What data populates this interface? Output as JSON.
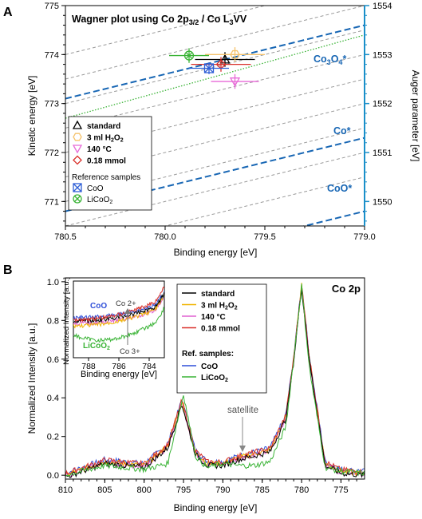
{
  "chart_data": [
    {
      "panel_label": "A",
      "type": "scatter",
      "title": "Wagner plot using Co 2p3/2 / Co L3VV",
      "title_parts": {
        "pre": "Wagner plot using Co 2p",
        "sub1": "3/2",
        "mid": " / Co L",
        "sub2": "3",
        "post": "VV"
      },
      "xlabel": "Binding energy [eV]",
      "ylabel": "Kinetic energy [eV]",
      "y2label": "Auger parameter [eV]",
      "xlim": [
        780.5,
        779.0
      ],
      "ylim": [
        770.5,
        775.0
      ],
      "y2lim": [
        1549.5,
        1554.0
      ],
      "xticks": [
        "780.5",
        "780.0",
        "779.5",
        "779.0"
      ],
      "yticks": [
        "771",
        "772",
        "773",
        "774",
        "775"
      ],
      "y2ticks": [
        "1550",
        "1551",
        "1552",
        "1553",
        "1554"
      ],
      "reference_lines": [
        {
          "label": "Co3O4*",
          "label_parts": {
            "pre": "Co",
            "sub1": "3",
            "mid": "O",
            "sub2": "4",
            "post": "*"
          },
          "auger_parameter": 1553.6
        },
        {
          "label": "Co*",
          "auger_parameter": 1551.3
        },
        {
          "label": "CoO*",
          "auger_parameter": 1549.8
        },
        {
          "label": "LiCoO2 (dotted)",
          "auger_parameter": 1553.3
        }
      ],
      "legend_group1": [
        {
          "name": "standard",
          "marker": "triangle",
          "color": "#000000"
        },
        {
          "name": "3 ml H2O2",
          "parts": {
            "pre": "3 ml H",
            "sub1": "2",
            "mid": "O",
            "sub2": "2"
          },
          "marker": "hexagon",
          "color": "#f5c26b"
        },
        {
          "name": "140 °C",
          "marker": "triangle-down",
          "color": "#e86ad8"
        },
        {
          "name": "0.18 mmol",
          "marker": "diamond",
          "color": "#d9302a"
        }
      ],
      "legend_group2_title": "Reference samples",
      "legend_group2": [
        {
          "name": "CoO",
          "marker": "box-x",
          "color": "#2f5fd6"
        },
        {
          "name": "LiCoO2",
          "parts": {
            "pre": "LiCoO",
            "sub1": "2"
          },
          "marker": "circle-x",
          "color": "#39b335"
        }
      ],
      "series": [
        {
          "name": "standard",
          "x": 779.7,
          "y": 773.9,
          "xerr": 0.15,
          "yerr": 0.15
        },
        {
          "name": "3 ml H2O2",
          "x": 779.65,
          "y": 774.0,
          "xerr": 0.15,
          "yerr": 0.15
        },
        {
          "name": "140 °C",
          "x": 779.65,
          "y": 773.45,
          "xerr": 0.12,
          "yerr": 0.15
        },
        {
          "name": "0.18 mmol",
          "x": 779.72,
          "y": 773.8,
          "xerr": 0.15,
          "yerr": 0.15
        },
        {
          "name": "CoO",
          "x": 779.78,
          "y": 773.72,
          "xerr": 0.1,
          "yerr": 0.12
        },
        {
          "name": "LiCoO2",
          "x": 779.88,
          "y": 773.98,
          "xerr": 0.1,
          "yerr": 0.15
        }
      ],
      "colors": {
        "blue_axis": "#1a8fc9",
        "ref_line": "#1766b4",
        "grid_dash": "#999999",
        "licoo2": "#39b335"
      }
    },
    {
      "panel_label": "B",
      "type": "line",
      "title": "Co 2p",
      "xlabel": "Binding energy [eV]",
      "ylabel": "Normalized Intensity [a.u.]",
      "xlim": [
        810,
        772
      ],
      "ylim": [
        -0.02,
        1.02
      ],
      "xticks": [
        "810",
        "805",
        "800",
        "795",
        "790",
        "785",
        "780",
        "775"
      ],
      "yticks": [
        "0.0",
        "0.2",
        "0.4",
        "0.6",
        "0.8",
        "1.0"
      ],
      "annotation": "satellite",
      "legend": [
        {
          "name": "standard",
          "color": "#000000"
        },
        {
          "name": "3 ml H2O2",
          "parts": {
            "pre": "3 ml H",
            "sub1": "2",
            "mid": "O",
            "sub2": "2"
          },
          "color": "#f0b400"
        },
        {
          "name": "140 °C",
          "color": "#e060d0"
        },
        {
          "name": "0.18 mmol",
          "color": "#d9302a"
        }
      ],
      "legend_ref_title": "Ref. samples:",
      "legend_ref": [
        {
          "name": "CoO",
          "color": "#2f4fd8"
        },
        {
          "name": "LiCoO2",
          "parts": {
            "pre": "LiCoO",
            "sub1": "2"
          },
          "color": "#39b335"
        }
      ],
      "series_shape": [
        {
          "name": "standard",
          "x": [
            810,
            805,
            800,
            797,
            795.2,
            793.5,
            792,
            790,
            788,
            786,
            784,
            782,
            781,
            780,
            779,
            777,
            775,
            772
          ],
          "y": [
            0.0,
            0.07,
            0.05,
            0.15,
            0.38,
            0.12,
            0.06,
            0.06,
            0.09,
            0.11,
            0.13,
            0.3,
            0.6,
            0.98,
            0.6,
            0.06,
            0.02,
            0.01
          ]
        },
        {
          "name": "LiCoO2",
          "x": [
            810,
            805,
            800,
            797,
            795,
            793.5,
            792,
            790,
            788,
            786,
            784,
            782,
            781,
            780,
            779,
            777,
            775,
            772
          ],
          "y": [
            0.0,
            0.05,
            0.03,
            0.06,
            0.42,
            0.1,
            0.04,
            0.06,
            0.05,
            0.05,
            0.07,
            0.25,
            0.6,
            0.98,
            0.55,
            0.04,
            0.02,
            0.01
          ]
        }
      ],
      "inset": {
        "xlabel": "Binding energy [eV]",
        "ylabel": "Normalized Intensity [a.u.]",
        "xlim": [
          789,
          783
        ],
        "xticks": [
          "788",
          "786",
          "784"
        ],
        "labels": [
          {
            "text": "CoO",
            "color": "#2f4fd8"
          },
          {
            "text": "LiCoO2",
            "parts": {
              "pre": "LiCoO",
              "sub1": "2"
            },
            "color": "#39b335"
          },
          {
            "text": "Co 2+",
            "color": "#333333"
          },
          {
            "text": "Co 3+",
            "color": "#333333"
          }
        ]
      }
    }
  ]
}
